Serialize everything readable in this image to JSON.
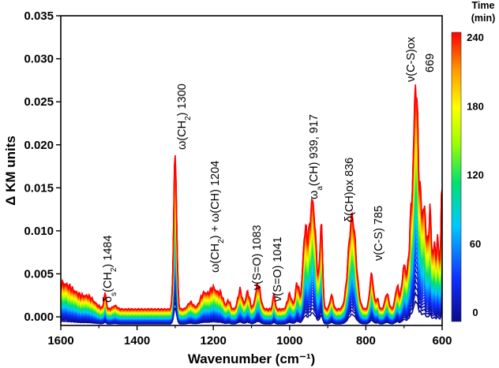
{
  "chart_data": {
    "type": "line",
    "title": "",
    "xlabel": "Wavenumber (cm⁻¹)",
    "ylabel": "Δ KM units",
    "xlim": [
      1600,
      600
    ],
    "ylim": [
      -0.001,
      0.035
    ],
    "x_ticks": [
      "1600",
      "1400",
      "1200",
      "1000",
      "800",
      "600"
    ],
    "y_ticks": [
      "0.000",
      "0.005",
      "0.010",
      "0.015",
      "0.020",
      "0.025",
      "0.030",
      "0.035"
    ],
    "colorbar": {
      "title_line1": "Time",
      "title_line2": "(min)",
      "range": [
        0,
        240
      ],
      "ticks": [
        "0",
        "60",
        "120",
        "180",
        "240"
      ],
      "colors": [
        "#0a0a8c",
        "#1030ff",
        "#00c8ff",
        "#00e070",
        "#a0ff00",
        "#ffff00",
        "#ff9900",
        "#ff0000"
      ]
    },
    "series_summary": {
      "time_range_min": [
        0,
        240
      ],
      "final_spectrum_peaks": [
        {
          "x": 1484,
          "y": 0.0017
        },
        {
          "x": 1300,
          "y": 0.0185
        },
        {
          "x": 1204,
          "y": 0.0038
        },
        {
          "x": 1083,
          "y": 0.003
        },
        {
          "x": 1041,
          "y": 0.0016
        },
        {
          "x": 939,
          "y": 0.0131
        },
        {
          "x": 917,
          "y": 0.0104
        },
        {
          "x": 836,
          "y": 0.0112
        },
        {
          "x": 785,
          "y": 0.0043
        },
        {
          "x": 669,
          "y": 0.0268
        }
      ]
    },
    "annotations": [
      {
        "id": "d_ch2",
        "parts": [
          {
            "t": "δ"
          },
          {
            "t": "s",
            "sub": true
          },
          {
            "t": "(CH"
          },
          {
            "t": "2",
            "sub": true
          },
          {
            "t": ") 1484"
          }
        ]
      },
      {
        "id": "w_ch2",
        "parts": [
          {
            "t": "ω(CH"
          },
          {
            "t": "2",
            "sub": true
          },
          {
            "t": ") 1300"
          }
        ]
      },
      {
        "id": "w_ch2_ch",
        "parts": [
          {
            "t": "ω(CH"
          },
          {
            "t": "2",
            "sub": true
          },
          {
            "t": ") + ω(CH) 1204"
          }
        ]
      },
      {
        "id": "v_so_1083",
        "parts": [
          {
            "t": "ν(S=O) 1083"
          }
        ]
      },
      {
        "id": "v_so_1041",
        "parts": [
          {
            "t": "ν(S=O) 1041"
          }
        ]
      },
      {
        "id": "wa_ch",
        "parts": [
          {
            "t": "ω"
          },
          {
            "t": "a",
            "sub": true
          },
          {
            "t": "(CH) 939, 917"
          }
        ]
      },
      {
        "id": "d_chox",
        "parts": [
          {
            "t": "δ(CH)ox 836"
          }
        ]
      },
      {
        "id": "v_cs",
        "parts": [
          {
            "t": "ν(C-S) 785"
          }
        ]
      },
      {
        "id": "v_csox",
        "parts": [
          {
            "t": "ν(C-S)ox"
          }
        ]
      },
      {
        "id": "v_csox_num",
        "parts": [
          {
            "t": "669"
          }
        ]
      }
    ]
  }
}
